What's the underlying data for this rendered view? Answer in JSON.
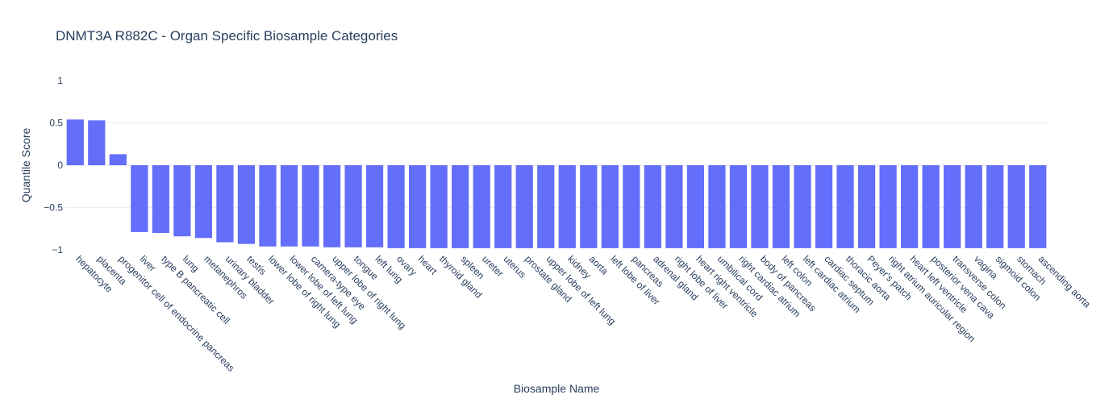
{
  "chart_data": {
    "type": "bar",
    "title": "DNMT3A R882C - Organ Specific Biosample Categories",
    "xlabel": "Biosample Name",
    "ylabel": "Quantile Score",
    "ylim": [
      -1,
      1
    ],
    "yticks": [
      1,
      0.5,
      0,
      -0.5,
      -1
    ],
    "ytick_labels": [
      "1",
      "0.5",
      "0",
      "−0.5",
      "−1"
    ],
    "grid": true,
    "bar_color": "#636efa",
    "categories": [
      "hepatocyte",
      "placenta",
      "progenitor cell of endocrine pancreas",
      "liver",
      "type B pancreatic cell",
      "lung",
      "metanephros",
      "urinary bladder",
      "testis",
      "lower lobe of right lung",
      "lower lobe of left lung",
      "camera-type eye",
      "upper lobe of right lung",
      "tongue",
      "left lung",
      "ovary",
      "heart",
      "thyroid gland",
      "spleen",
      "ureter",
      "uterus",
      "prostate gland",
      "upper lobe of left lung",
      "kidney",
      "aorta",
      "left lobe of liver",
      "pancreas",
      "adrenal gland",
      "right lobe of liver",
      "heart right ventricle",
      "umbilical cord",
      "right cardiac atrium",
      "body of pancreas",
      "left colon",
      "left cardiac atrium",
      "cardiac septum",
      "thoracic aorta",
      "Peyer's patch",
      "right atrium auricular region",
      "heart left ventricle",
      "posterior vena cava",
      "transverse colon",
      "vagina",
      "sigmoid colon",
      "stomach",
      "ascending aorta"
    ],
    "values": [
      0.54,
      0.53,
      0.13,
      -0.79,
      -0.8,
      -0.84,
      -0.86,
      -0.91,
      -0.93,
      -0.96,
      -0.96,
      -0.96,
      -0.97,
      -0.97,
      -0.97,
      -0.98,
      -0.98,
      -0.98,
      -0.98,
      -0.98,
      -0.98,
      -0.98,
      -0.98,
      -0.98,
      -0.98,
      -0.98,
      -0.98,
      -0.98,
      -0.98,
      -0.98,
      -0.98,
      -0.98,
      -0.98,
      -0.98,
      -0.98,
      -0.98,
      -0.98,
      -0.98,
      -0.98,
      -0.98,
      -0.98,
      -0.98,
      -0.98,
      -0.98,
      -0.98,
      -0.98
    ]
  }
}
